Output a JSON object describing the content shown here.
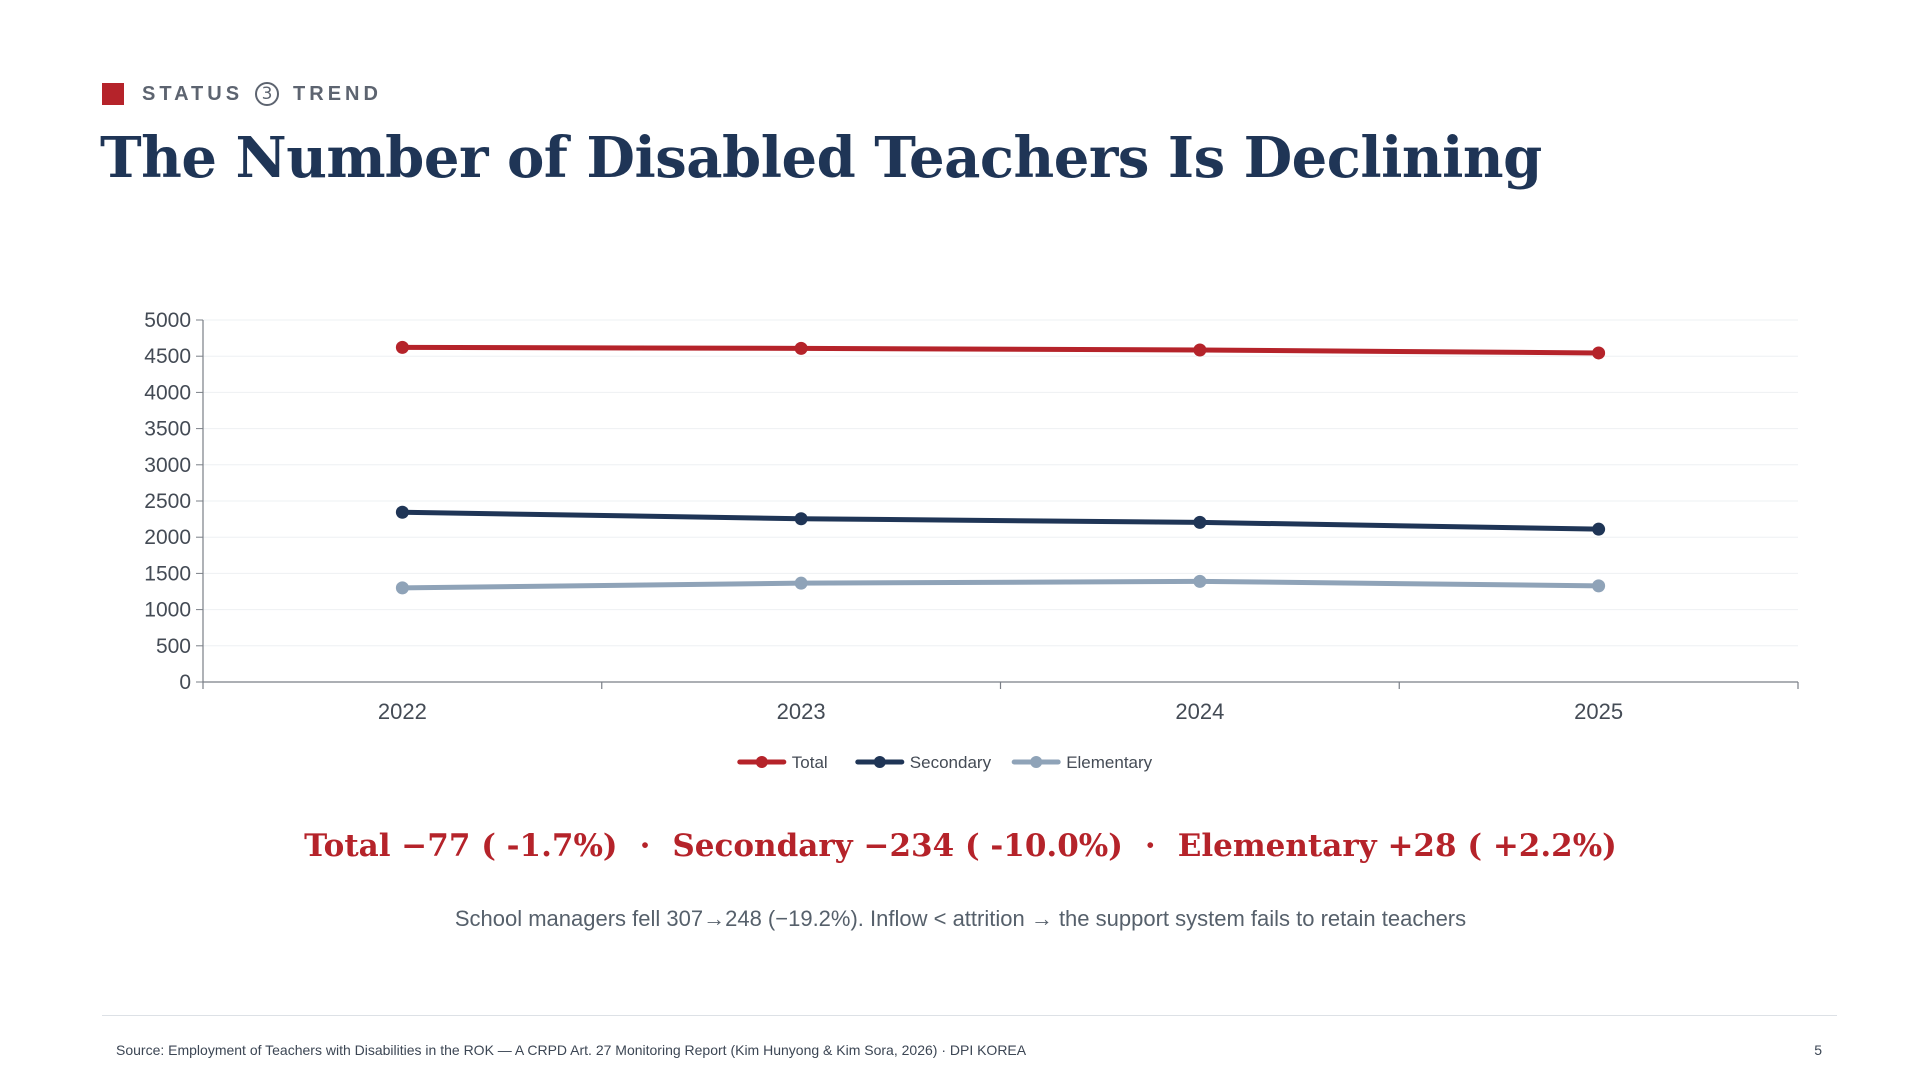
{
  "header": {
    "kicker_left": "STATUS",
    "kicker_num": "3",
    "kicker_right": "TREND",
    "title": "The Number of Disabled Teachers Is Declining"
  },
  "chart_data": {
    "type": "line",
    "categories": [
      "2022",
      "2023",
      "2024",
      "2025"
    ],
    "series": [
      {
        "name": "Total",
        "color": "#b5232a",
        "values": [
          4622,
          4608,
          4586,
          4545
        ]
      },
      {
        "name": "Secondary",
        "color": "#1f3556",
        "values": [
          2345,
          2255,
          2205,
          2111
        ]
      },
      {
        "name": "Elementary",
        "color": "#8fa3b8",
        "values": [
          1300,
          1365,
          1390,
          1328
        ]
      }
    ],
    "ylim": [
      0,
      5000
    ],
    "yticks": [
      "0",
      "500",
      "1000",
      "1500",
      "2000",
      "2500",
      "3000",
      "3500",
      "4000",
      "4500",
      "5000"
    ],
    "grid": true,
    "legend_position": "bottom"
  },
  "summary": {
    "total": "Total −77 ( -1.7%)",
    "secondary": "Secondary −234 ( -10.0%)",
    "elementary": "Elementary +28 ( +2.2%)",
    "separator": "·",
    "note": "School managers fell 307→248 (−19.2%). Inflow < attrition → the support system fails to retain teachers"
  },
  "footer": {
    "source": "Source: Employment of Teachers with Disabilities in the ROK — A CRPD Art. 27 Monitoring Report (Kim Hunyong & Kim Sora, 2026) · DPI KOREA",
    "page": "5"
  }
}
